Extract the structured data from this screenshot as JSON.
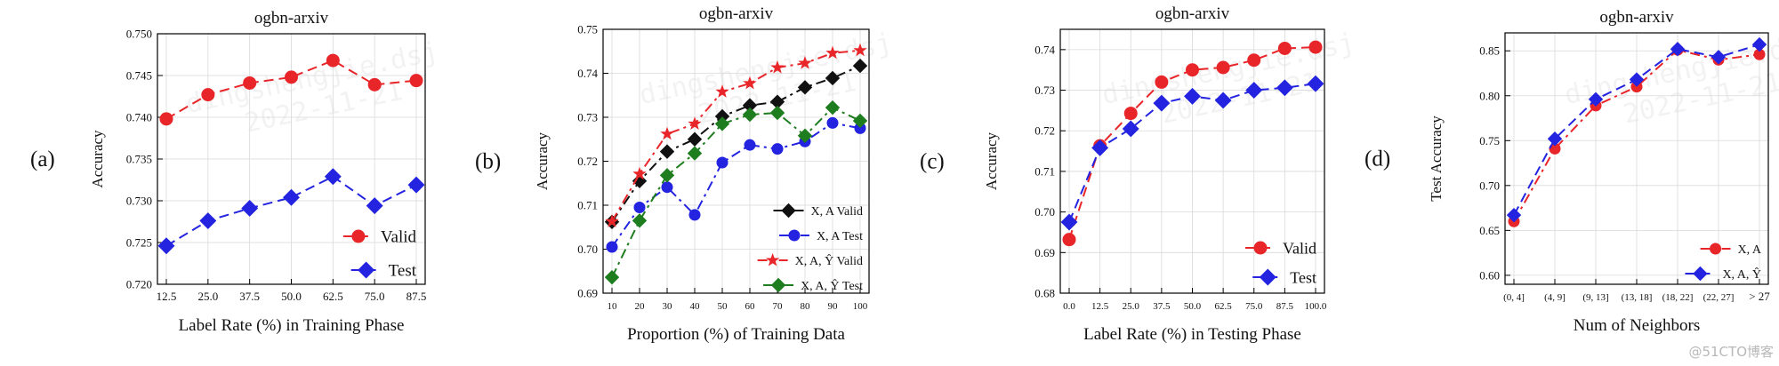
{
  "watermark": {
    "user": "dingshengjie.dsj",
    "date": "2022-11-21",
    "credit": "@51CTO博客"
  },
  "chart_data": [
    {
      "type": "line",
      "panel_label": "(a)",
      "title": "ogbn-arxiv",
      "xlabel": "Label Rate (%) in Training Phase",
      "ylabel": "Accuracy",
      "categories": [
        "12.5",
        "25.0",
        "37.5",
        "50.0",
        "62.5",
        "75.0",
        "87.5"
      ],
      "ylim": [
        0.72,
        0.75
      ],
      "yticks": [
        "0.720",
        "0.725",
        "0.730",
        "0.735",
        "0.740",
        "0.745",
        "0.750"
      ],
      "legend_position": "bottom-right",
      "series": [
        {
          "name": "Valid",
          "values": [
            0.7398,
            0.7427,
            0.7441,
            0.7448,
            0.7468,
            0.7439,
            0.7444
          ],
          "color": "#e8262a",
          "marker": "circle",
          "dash": "dashed"
        },
        {
          "name": "Test",
          "values": [
            0.7246,
            0.7276,
            0.7291,
            0.7304,
            0.7329,
            0.7294,
            0.7319
          ],
          "color": "#2323e0",
          "marker": "diamond",
          "dash": "dashed"
        }
      ]
    },
    {
      "type": "line",
      "panel_label": "(b)",
      "title": "ogbn-arxiv",
      "xlabel": "Proportion (%) of Training Data",
      "ylabel": "Accuracy",
      "categories": [
        "10",
        "20",
        "30",
        "40",
        "50",
        "60",
        "70",
        "80",
        "90",
        "100"
      ],
      "ylim": [
        0.69,
        0.75
      ],
      "yticks": [
        "0.69",
        "0.70",
        "0.71",
        "0.72",
        "0.73",
        "0.74",
        "0.75"
      ],
      "legend_position": "bottom-right",
      "series": [
        {
          "name": "X, A  Valid",
          "values": [
            0.7062,
            0.7155,
            0.7222,
            0.725,
            0.7302,
            0.7327,
            0.7335,
            0.7368,
            0.7389,
            0.7417
          ],
          "color": "#111111",
          "marker": "diamond",
          "dash": "dashdot"
        },
        {
          "name": "X, A  Test",
          "values": [
            0.7005,
            0.7095,
            0.7141,
            0.7078,
            0.7197,
            0.7237,
            0.7228,
            0.7245,
            0.7287,
            0.7275
          ],
          "color": "#2323e0",
          "marker": "circle",
          "dash": "dashdot"
        },
        {
          "name": "X, A, Ŷ  Valid",
          "values": [
            0.7063,
            0.7171,
            0.7262,
            0.7285,
            0.7358,
            0.7377,
            0.7413,
            0.7423,
            0.7446,
            0.7452
          ],
          "color": "#e8262a",
          "marker": "star",
          "dash": "dashdot"
        },
        {
          "name": "X, A, Ŷ  Test",
          "values": [
            0.6936,
            0.7065,
            0.7168,
            0.7218,
            0.7285,
            0.7306,
            0.731,
            0.7258,
            0.7322,
            0.7292
          ],
          "color": "#1e7d1e",
          "marker": "diamond",
          "dash": "dashdot"
        }
      ]
    },
    {
      "type": "line",
      "panel_label": "(c)",
      "title": "ogbn-arxiv",
      "xlabel": "Label Rate (%) in Testing Phase",
      "ylabel": "Accuracy",
      "categories": [
        "0.0",
        "12.5",
        "25.0",
        "37.5",
        "50.0",
        "62.5",
        "75.0",
        "87.5",
        "100.0"
      ],
      "ylim": [
        0.68,
        0.745
      ],
      "yticks": [
        "0.68",
        "0.69",
        "0.70",
        "0.71",
        "0.72",
        "0.73",
        "0.74"
      ],
      "legend_position": "bottom-right",
      "series": [
        {
          "name": "Valid",
          "values": [
            0.6932,
            0.7163,
            0.7243,
            0.732,
            0.735,
            0.7356,
            0.7374,
            0.7403,
            0.7406
          ],
          "color": "#e8262a",
          "marker": "circle",
          "dash": "dashed"
        },
        {
          "name": "Test",
          "values": [
            0.6975,
            0.7158,
            0.7205,
            0.7268,
            0.7285,
            0.7275,
            0.73,
            0.7306,
            0.7316
          ],
          "color": "#2323e0",
          "marker": "diamond",
          "dash": "dashed"
        }
      ]
    },
    {
      "type": "line",
      "panel_label": "(d)",
      "title": "ogbn-arxiv",
      "xlabel": "Num of Neighbors",
      "ylabel": "Test Accuracy",
      "categories": [
        "(0, 4]",
        "(4, 9]",
        "(9, 13]",
        "(13, 18]",
        "(18, 22]",
        "(22, 27]",
        "> 27"
      ],
      "ylim": [
        0.59,
        0.87
      ],
      "yticks": [
        "0.60",
        "0.65",
        "0.70",
        "0.75",
        "0.80",
        "0.85"
      ],
      "legend_position": "bottom-right",
      "series": [
        {
          "name": "X, A",
          "values": [
            0.66,
            0.741,
            0.789,
            0.81,
            0.851,
            0.84,
            0.846
          ],
          "color": "#e8262a",
          "marker": "circle",
          "dash": "dashdot"
        },
        {
          "name": "X, A, Ŷ",
          "values": [
            0.667,
            0.752,
            0.796,
            0.818,
            0.852,
            0.843,
            0.857
          ],
          "color": "#2323e0",
          "marker": "diamond",
          "dash": "dashed"
        }
      ]
    }
  ]
}
